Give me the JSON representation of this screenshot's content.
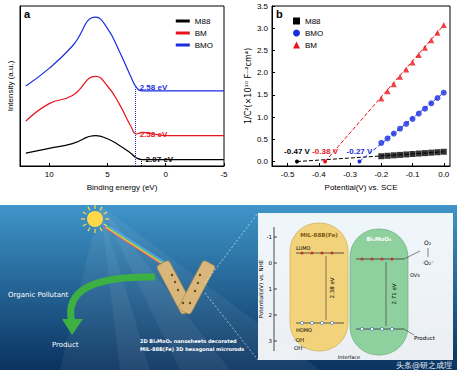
{
  "chart_data": [
    {
      "type": "line",
      "title": "a",
      "x_label": "Binding energy (eV)",
      "y_label": "Intensity (a.u.)",
      "x": [
        12,
        10,
        8,
        6,
        5,
        4,
        3,
        2.5,
        2,
        0,
        -5
      ],
      "series": [
        {
          "name": "M88",
          "color": "#000000",
          "values": [
            0.8,
            1.1,
            1.4,
            1.9,
            1.7,
            1.3,
            0.8,
            0.5,
            0.4,
            0.4,
            0.4
          ]
        },
        {
          "name": "BM",
          "color": "#e8141c",
          "values": [
            2.8,
            3.9,
            4.4,
            5.6,
            5.0,
            3.9,
            2.5,
            2.0,
            2.1,
            1.9,
            1.9
          ]
        },
        {
          "name": "BMO",
          "color": "#1a2ee0",
          "values": [
            5.0,
            6.1,
            7.5,
            9.3,
            8.6,
            7.2,
            5.6,
            4.9,
            4.7,
            4.7,
            4.7
          ]
        }
      ],
      "xlim": [
        12.5,
        -5
      ],
      "xticks": [
        10,
        5,
        0,
        -5
      ],
      "ylim": [
        0,
        10
      ],
      "tick_labels": "x",
      "legend": "upper right",
      "marker": "none",
      "line_style": "solid",
      "grid": false,
      "annotations": [
        {
          "text": "2.58 eV",
          "series": "BMO",
          "x": 2.58,
          "y": 4.9
        },
        {
          "text": "2.58 eV",
          "series": "BM",
          "x": 2.58,
          "y": 2.0
        },
        {
          "text": "2.07 eV",
          "series": "M88",
          "x": 2.07,
          "y": 0.4
        }
      ]
    },
    {
      "type": "scatter",
      "title": "b",
      "x_label": "Potential(V) vs. SCE",
      "y_label": "1/C²(×10¹⁰ F⁻²cm⁴)",
      "x": [
        -0.2,
        -0.18,
        -0.16,
        -0.14,
        -0.12,
        -0.1,
        -0.08,
        -0.06,
        -0.04,
        -0.02,
        0
      ],
      "series": [
        {
          "name": "M88",
          "color": "#000000",
          "marker": "square",
          "values": [
            0.12,
            0.13,
            0.14,
            0.15,
            0.16,
            0.17,
            0.18,
            0.19,
            0.2,
            0.21,
            0.22
          ]
        },
        {
          "name": "BMO",
          "color": "#1a2ee0",
          "marker": "circle",
          "values": [
            0.42,
            0.52,
            0.63,
            0.74,
            0.85,
            0.96,
            1.08,
            1.19,
            1.31,
            1.43,
            1.55
          ]
        },
        {
          "name": "BM",
          "color": "#e8141c",
          "marker": "triangle",
          "values": [
            1.42,
            1.58,
            1.74,
            1.91,
            2.07,
            2.23,
            2.4,
            2.56,
            2.73,
            2.9,
            3.07
          ]
        }
      ],
      "xlim": [
        -0.55,
        0.02
      ],
      "xticks": [
        -0.5,
        -0.4,
        -0.3,
        -0.2,
        -0.1,
        {
          "value": 0,
          "label": "0.0"
        }
      ],
      "ylim": [
        -0.1,
        3.5
      ],
      "yticks": [
        {
          "value": 0,
          "label": "0.0"
        },
        0.5,
        {
          "value": 1,
          "label": "1.0"
        },
        1.5,
        {
          "value": 2,
          "label": "2.0"
        },
        2.5,
        {
          "value": 3,
          "label": "3.0"
        },
        3.5
      ],
      "legend": "upper left",
      "grid": false,
      "annotations": [
        {
          "text": "-0.47 V",
          "series": "M88",
          "x": -0.47,
          "y": 0
        },
        {
          "text": "-0.38 V",
          "series": "BM",
          "x": -0.38,
          "y": 0
        },
        {
          "text": "-0.27 V",
          "series": "BMO",
          "x": -0.27,
          "y": 0
        }
      ]
    }
  ],
  "diagram": {
    "pollutant": "Organic Pollutant",
    "product": "Product",
    "caption": [
      "2D Bi₂MoO₆ nanosheets decorated",
      "MIL-88B(Fe) 3D hexagonal microrods"
    ],
    "inset": {
      "axis_label": "Potential(eV) vs. NHE",
      "ticks": [
        -1,
        0,
        1,
        2,
        3
      ],
      "materials": [
        {
          "name": "MIL-88B(Fe)",
          "gap": "2.38 eV"
        },
        {
          "name": "Bi₂MoO₆",
          "gap": "2.71 eV"
        }
      ],
      "levels": [
        "LUMO",
        "HOMO"
      ],
      "species": {
        "o2": "O₂",
        "superoxide": "·O₂⁻",
        "vacancy": "OVs",
        "hydroxyl": "·OH",
        "hydroxide": "OH⁻",
        "product": "Product"
      },
      "interface": "Interface"
    },
    "watermark": "头条@研之成理"
  }
}
